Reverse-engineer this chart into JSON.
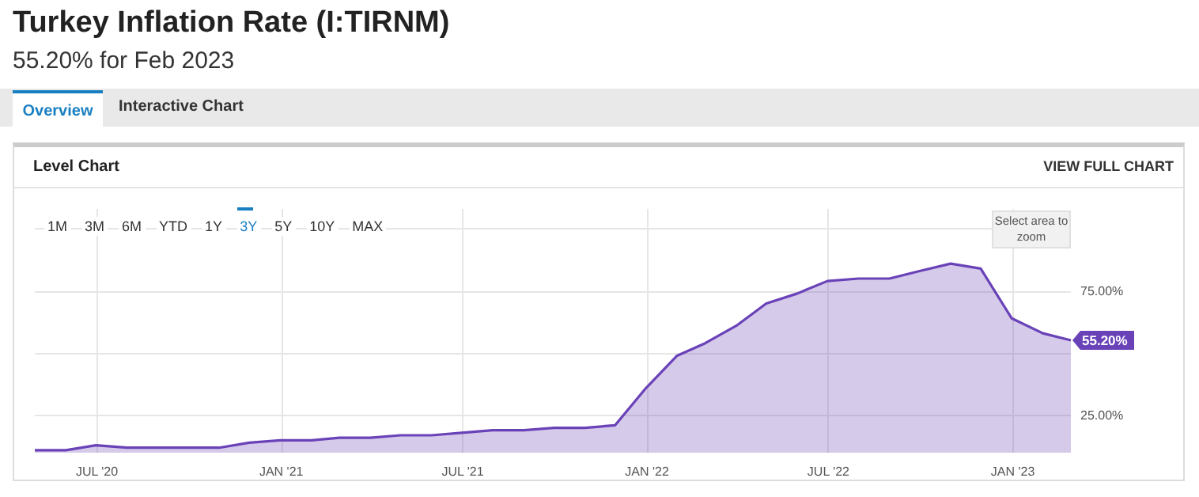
{
  "chart_data": {
    "type": "area",
    "title": "Turkey Inflation Rate (I:TIRNM)",
    "subtitle": "55.20% for Feb 2023",
    "annotations": [
      "Overview",
      "Interactive Chart",
      "Level Chart",
      "VIEW FULL CHART",
      "1M",
      "3M",
      "6M",
      "YTD",
      "1Y",
      "3Y",
      "5Y",
      "10Y",
      "MAX",
      "Select area to zoom",
      {
        "text": "55.20%",
        "x": "2023-02-28",
        "y": 55.2
      }
    ],
    "x": [
      "2020-04-30",
      "2020-05-31",
      "2020-06-30",
      "2020-07-31",
      "2020-08-31",
      "2020-09-30",
      "2020-10-31",
      "2020-11-30",
      "2020-12-31",
      "2021-01-31",
      "2021-02-28",
      "2021-03-31",
      "2021-04-30",
      "2021-05-31",
      "2021-06-30",
      "2021-07-31",
      "2021-08-31",
      "2021-09-30",
      "2021-10-31",
      "2021-11-30",
      "2021-12-31",
      "2022-01-31",
      "2022-02-28",
      "2022-03-31",
      "2022-04-30",
      "2022-05-31",
      "2022-06-30",
      "2022-07-31",
      "2022-08-31",
      "2022-09-30",
      "2022-10-31",
      "2022-11-30",
      "2022-12-31",
      "2023-01-31",
      "2023-02-28"
    ],
    "series": [
      {
        "color": "#6a42b8",
        "values": [
          11,
          11,
          13,
          12,
          12,
          12,
          12,
          14,
          15,
          15,
          16,
          16,
          17,
          17,
          18,
          19,
          19,
          20,
          20,
          21,
          36,
          49,
          54,
          61,
          70,
          74,
          79,
          80,
          80,
          83,
          86,
          84,
          64,
          58,
          55.2
        ]
      }
    ],
    "xlim": [
      "2020-04-30",
      "2023-02-28"
    ],
    "xticks": [
      {
        "value": "2020-07-01",
        "label": "JUL '20"
      },
      {
        "value": "2021-01-01",
        "label": "JAN '21"
      },
      {
        "value": "2021-07-01",
        "label": "JUL '21"
      },
      {
        "value": "2022-01-01",
        "label": "JAN '22"
      },
      {
        "value": "2022-07-01",
        "label": "JUL '22"
      },
      {
        "value": "2023-01-01",
        "label": "JAN '23"
      }
    ],
    "ylim": [
      10,
      108
    ],
    "yticks": [
      {
        "value": 25,
        "label": "25.00%"
      },
      {
        "value": 50,
        "label": null
      },
      {
        "value": 75,
        "label": "75.00%"
      },
      {
        "value": 100,
        "label": null
      }
    ],
    "grid": true,
    "marker": "none",
    "line_style": "solid"
  }
}
